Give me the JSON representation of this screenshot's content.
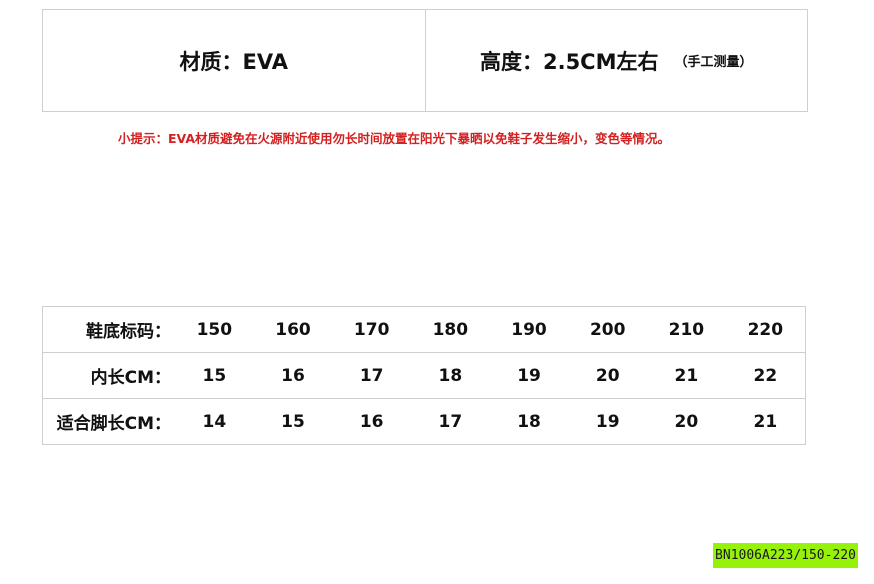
{
  "specs": {
    "material": "材质：EVA",
    "height": "高度：2.5CM左右",
    "height_note": "（手工测量）"
  },
  "tip": "小提示：EVA材质避免在火源附近使用勿长时间放置在阳光下暴晒以免鞋子发生缩小，变色等情况。",
  "size_table": {
    "rows": [
      {
        "label": "鞋底标码：",
        "values": [
          "150",
          "160",
          "170",
          "180",
          "190",
          "200",
          "210",
          "220"
        ]
      },
      {
        "label": "内长CM：",
        "values": [
          "15",
          "16",
          "17",
          "18",
          "19",
          "20",
          "21",
          "22"
        ]
      },
      {
        "label": "适合脚长CM：",
        "values": [
          "14",
          "15",
          "16",
          "17",
          "18",
          "19",
          "20",
          "21"
        ]
      }
    ]
  },
  "product_code": "BN1006A223/150-220",
  "colors": {
    "tip": "#d42020",
    "code_bg": "#97f20a"
  }
}
